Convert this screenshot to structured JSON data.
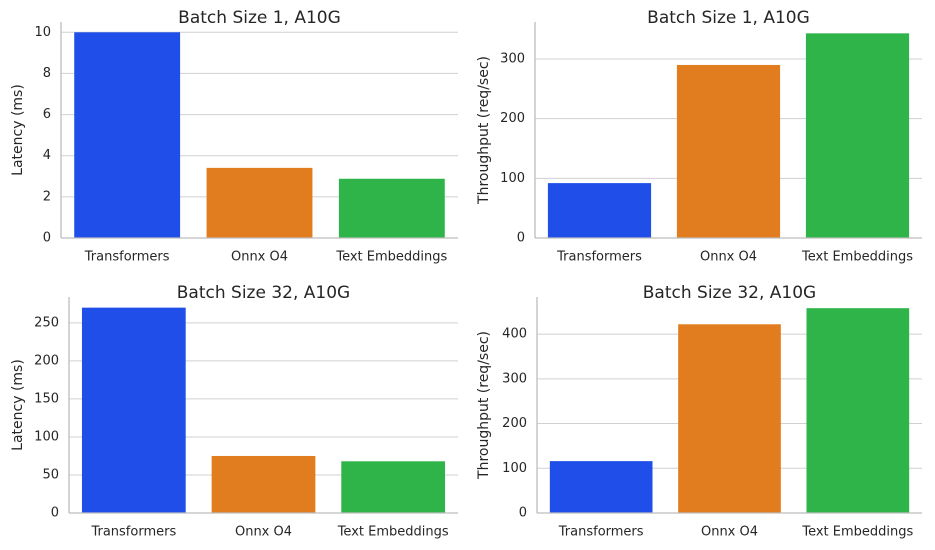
{
  "chart_data": [
    {
      "type": "bar",
      "title": "Batch Size 1, A10G",
      "y_label": "Latency (ms)",
      "categories": [
        "Transformers",
        "Onnx O4",
        "Text Embeddings"
      ],
      "values": [
        10.0,
        3.41,
        2.88
      ],
      "colors": [
        "#1f4fe8",
        "#e17d1e",
        "#2fb44a"
      ],
      "ylim": [
        0,
        10.5
      ],
      "yticks": [
        0,
        2,
        4,
        6,
        8,
        10
      ],
      "grid": true
    },
    {
      "type": "bar",
      "title": "Batch Size 1, A10G",
      "y_label": "Throughput (req/sec)",
      "categories": [
        "Transformers",
        "Onnx O4",
        "Text Embeddings"
      ],
      "values": [
        92,
        290,
        343
      ],
      "colors": [
        "#1f4fe8",
        "#e17d1e",
        "#2fb44a"
      ],
      "ylim": [
        0,
        362
      ],
      "yticks": [
        0,
        100,
        200,
        300
      ],
      "grid": true
    },
    {
      "type": "bar",
      "title": "Batch Size 32, A10G",
      "y_label": "Latency (ms)",
      "categories": [
        "Transformers",
        "Onnx O4",
        "Text Embeddings"
      ],
      "values": [
        270,
        75,
        68
      ],
      "colors": [
        "#1f4fe8",
        "#e17d1e",
        "#2fb44a"
      ],
      "ylim": [
        0,
        284
      ],
      "yticks": [
        0,
        50,
        100,
        150,
        200,
        250
      ],
      "grid": true
    },
    {
      "type": "bar",
      "title": "Batch Size 32, A10G",
      "y_label": "Throughput (req/sec)",
      "categories": [
        "Transformers",
        "Onnx O4",
        "Text Embeddings"
      ],
      "values": [
        116,
        422,
        458
      ],
      "colors": [
        "#1f4fe8",
        "#e17d1e",
        "#2fb44a"
      ],
      "ylim": [
        0,
        483
      ],
      "yticks": [
        0,
        100,
        200,
        300,
        400
      ],
      "grid": true
    }
  ]
}
